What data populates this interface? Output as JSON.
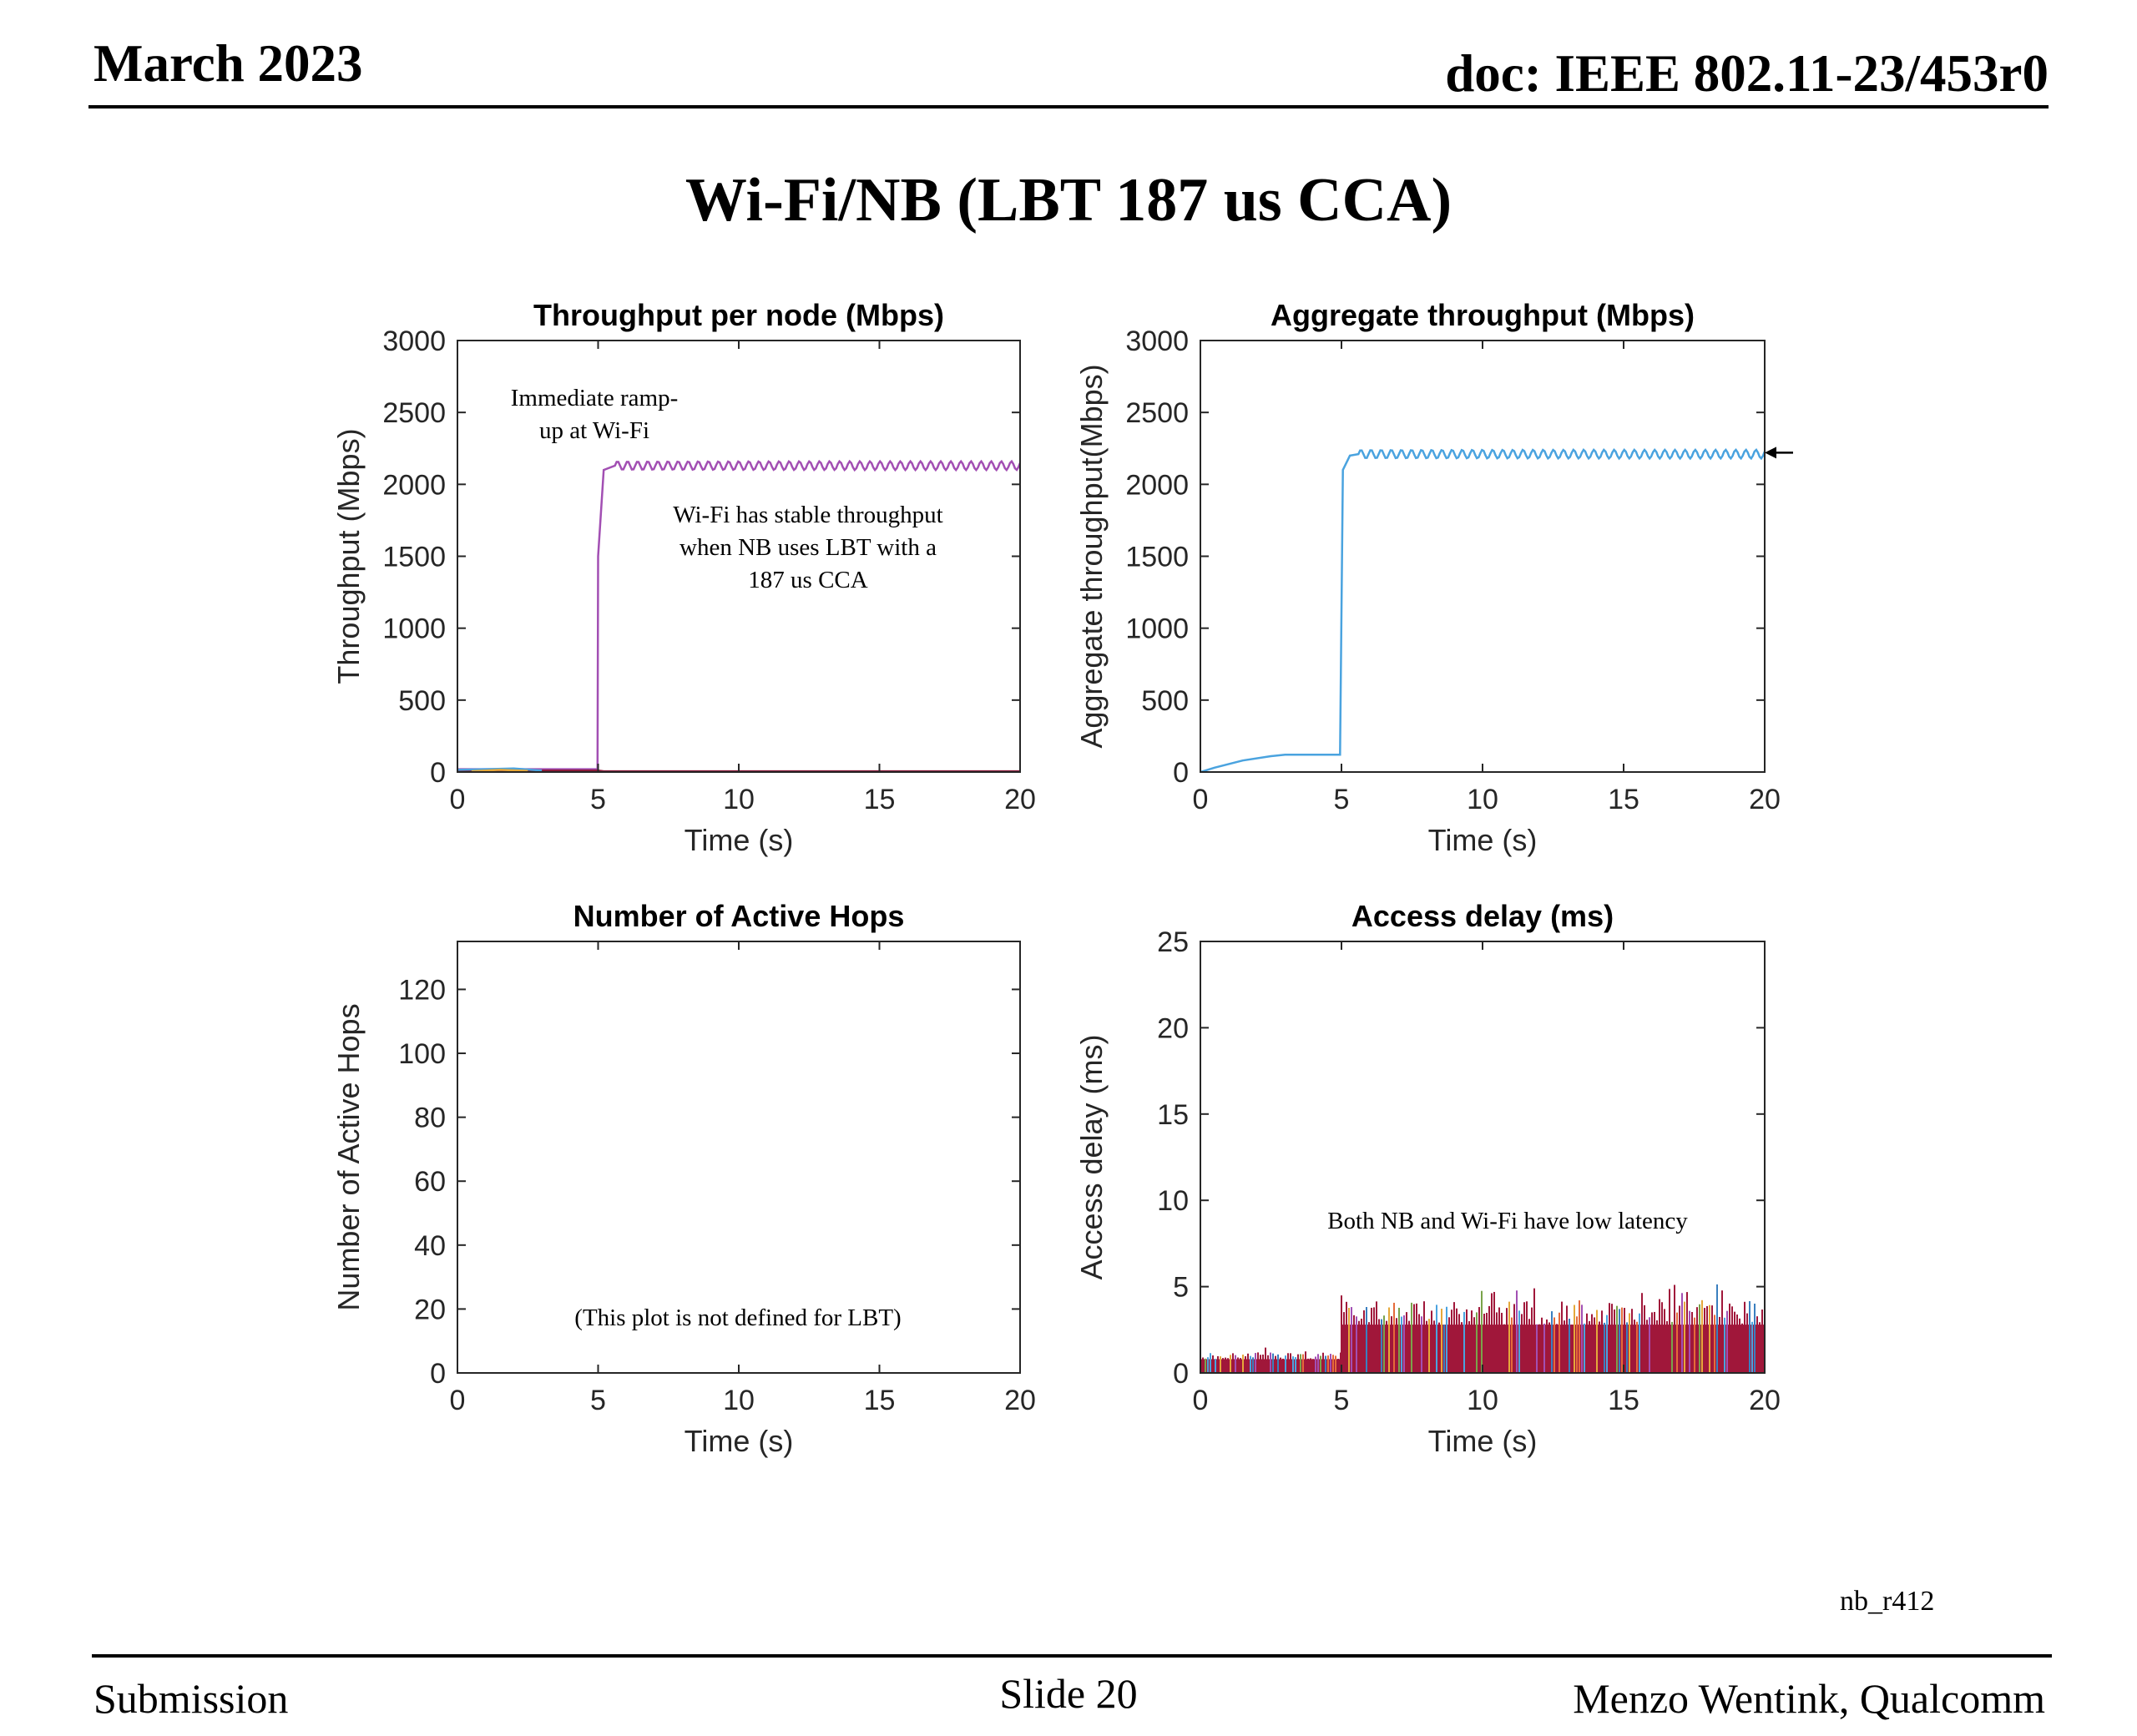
{
  "header": {
    "date": "March 2023",
    "doc": "doc: IEEE 802.11-23/453r0"
  },
  "slide": {
    "title": "Wi-Fi/NB (LBT 187 us CCA)"
  },
  "footer": {
    "left": "Submission",
    "center": "Slide 20",
    "right": "Menzo Wentink, Qualcomm"
  },
  "tag": "nb_r412",
  "chart_data": [
    {
      "id": "tp",
      "type": "line",
      "title": "Throughput per node (Mbps)",
      "xlabel": "Time (s)",
      "ylabel": "Throughput (Mbps)",
      "xlim": [
        0,
        20
      ],
      "ylim": [
        0,
        3000
      ],
      "xticks": [
        0,
        5,
        10,
        15,
        20
      ],
      "yticks": [
        0,
        500,
        1000,
        1500,
        2000,
        2500,
        3000
      ],
      "series": [
        {
          "color": "#a24fb3",
          "x": [
            0,
            4.98,
            5.0,
            5.2,
            5.6,
            20
          ],
          "y": [
            20,
            20,
            1500,
            2100,
            2130,
            2130
          ],
          "ripple": 30
        },
        {
          "color": "#8b1a3a",
          "x": [
            0,
            5,
            5.2,
            20
          ],
          "y": [
            10,
            10,
            5,
            5
          ]
        },
        {
          "color": "#4aa3df",
          "x": [
            0,
            1,
            2,
            3
          ],
          "y": [
            15,
            20,
            25,
            10
          ]
        },
        {
          "color": "#e5a83a",
          "x": [
            0.5,
            1.5,
            2.5
          ],
          "y": [
            5,
            15,
            8
          ]
        }
      ],
      "annotations": [
        {
          "lines": [
            "Immediate ramp-",
            "up at Wi-Fi"
          ]
        },
        {
          "lines": [
            "Wi-Fi has stable throughput",
            "when NB uses LBT with a",
            "187 us CCA"
          ]
        }
      ]
    },
    {
      "id": "agg",
      "type": "line",
      "title": "Aggregate throughput (Mbps)",
      "xlabel": "Time (s)",
      "ylabel": "Aggregate throughput(Mbps)",
      "xlim": [
        0,
        20
      ],
      "ylim": [
        0,
        3000
      ],
      "xticks": [
        0,
        5,
        10,
        15,
        20
      ],
      "yticks": [
        0,
        500,
        1000,
        1500,
        2000,
        2500,
        3000
      ],
      "series": [
        {
          "color": "#4aa3df",
          "x": [
            0,
            0.5,
            1.5,
            2.5,
            3,
            4.95,
            5.05,
            5.3,
            5.6,
            20
          ],
          "y": [
            0,
            30,
            80,
            110,
            120,
            120,
            2100,
            2200,
            2210,
            2210
          ],
          "ripple": 30
        }
      ],
      "marker": {
        "type": "arrow",
        "y": 2220
      }
    },
    {
      "id": "hops",
      "type": "line",
      "title": "Number of Active Hops",
      "xlabel": "Time (s)",
      "ylabel": "Number of Active Hops",
      "xlim": [
        0,
        20
      ],
      "ylim": [
        0,
        135
      ],
      "xticks": [
        0,
        5,
        10,
        15,
        20
      ],
      "yticks": [
        0,
        20,
        40,
        60,
        80,
        100,
        120
      ],
      "series": [],
      "annotations": [
        {
          "lines": [
            "(This plot is not defined for LBT)"
          ]
        }
      ]
    },
    {
      "id": "delay",
      "type": "bar",
      "title": "Access delay (ms)",
      "xlabel": "Time (s)",
      "ylabel": "Access delay (ms)",
      "xlim": [
        0,
        20
      ],
      "ylim": [
        0,
        25
      ],
      "xticks": [
        0,
        5,
        10,
        15,
        20
      ],
      "yticks": [
        0,
        5,
        10,
        15,
        20,
        25
      ],
      "segments": [
        {
          "x0": 0,
          "x1": 5,
          "base": 0.8,
          "peak": 1.5,
          "color": "#a0173a"
        },
        {
          "x0": 5,
          "x1": 20,
          "base": 2.8,
          "peak": 5.3,
          "color": "#a0173a"
        }
      ],
      "spike_colors": [
        "#4aa3df",
        "#e5a83a",
        "#7aa34a",
        "#a24fb3",
        "#e56a3a",
        "#3a7fbf"
      ],
      "annotations": [
        {
          "lines": [
            "Both NB and Wi-Fi have low latency"
          ]
        }
      ]
    }
  ]
}
